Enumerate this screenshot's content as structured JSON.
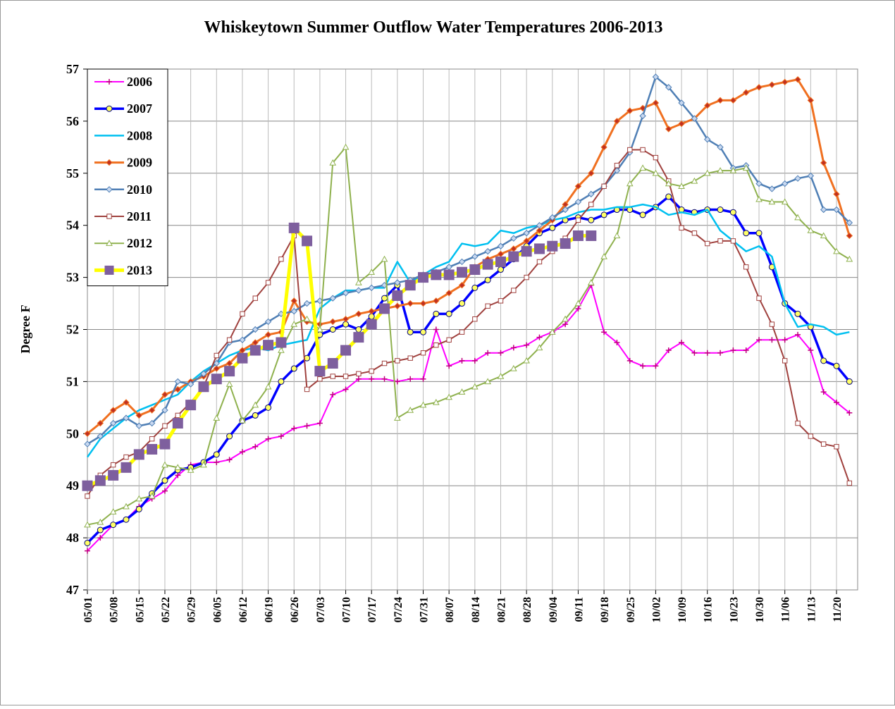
{
  "chart_data": {
    "type": "line",
    "title": "Whiskeytown  Summer Outflow Water Temperatures  2006-2013",
    "y_label": "Degree F",
    "categories": [
      "05/01",
      null,
      "05/08",
      null,
      "05/15",
      null,
      "05/22",
      null,
      "05/29",
      null,
      "06/05",
      null,
      "06/12",
      null,
      "06/19",
      null,
      "06/26",
      null,
      "07/03",
      null,
      "07/10",
      null,
      "07/17",
      null,
      "07/24",
      null,
      "07/31",
      null,
      "08/07",
      null,
      "08/14",
      null,
      "08/21",
      null,
      "08/28",
      null,
      "09/04",
      null,
      "09/11",
      null,
      "09/18",
      null,
      "09/25",
      null,
      "10/02",
      null,
      "10/09",
      null,
      "10/16",
      null,
      "10/23",
      null,
      "10/30",
      null,
      "11/06",
      null,
      "11/13",
      null,
      "11/20",
      null
    ],
    "ylim": [
      47,
      57
    ],
    "yticks": [
      47,
      48,
      49,
      50,
      51,
      52,
      53,
      54,
      55,
      56,
      57
    ],
    "grid": true,
    "legend": "upper-left",
    "series": [
      {
        "name": "2006",
        "color": "#ff00ff",
        "marker": "plus",
        "marker_color": "#c0007f",
        "values": [
          47.75,
          48.0,
          48.25,
          48.35,
          48.6,
          48.75,
          48.9,
          49.2,
          49.4,
          49.45,
          49.45,
          49.5,
          49.65,
          49.75,
          49.9,
          49.95,
          50.1,
          50.15,
          50.2,
          50.75,
          50.85,
          51.05,
          51.05,
          51.05,
          51.0,
          51.05,
          51.05,
          52.0,
          51.3,
          51.4,
          51.4,
          51.55,
          51.55,
          51.65,
          51.7,
          51.85,
          51.95,
          52.1,
          52.4,
          52.85,
          51.95,
          51.75,
          51.4,
          51.3,
          51.3,
          51.6,
          51.75,
          51.55,
          51.55,
          51.55,
          51.6,
          51.6,
          51.8,
          51.8,
          51.8,
          51.9,
          51.6,
          50.8,
          50.6,
          50.4
        ]
      },
      {
        "name": "2007",
        "color": "#0000ff",
        "marker": "circle",
        "marker_color": "#ffff66",
        "values": [
          47.9,
          48.15,
          48.25,
          48.35,
          48.55,
          48.85,
          49.1,
          49.3,
          49.35,
          49.45,
          49.6,
          49.95,
          50.25,
          50.35,
          50.5,
          51.0,
          51.25,
          51.45,
          51.9,
          52.0,
          52.1,
          52.0,
          52.25,
          52.6,
          52.85,
          51.95,
          51.95,
          52.3,
          52.3,
          52.5,
          52.8,
          52.95,
          53.15,
          53.35,
          53.6,
          53.85,
          53.95,
          54.1,
          54.15,
          54.1,
          54.2,
          54.3,
          54.3,
          54.2,
          54.35,
          54.55,
          54.3,
          54.25,
          54.3,
          54.3,
          54.25,
          53.85,
          53.85,
          53.2,
          52.5,
          52.3,
          52.05,
          51.4,
          51.3,
          51.0
        ]
      },
      {
        "name": "2008",
        "color": "#00c0f0",
        "marker": "none",
        "marker_color": "#00c0f0",
        "values": [
          49.55,
          49.9,
          50.1,
          50.3,
          50.45,
          50.55,
          50.65,
          50.75,
          51.0,
          51.2,
          51.35,
          51.5,
          51.6,
          51.65,
          51.6,
          51.7,
          51.75,
          51.8,
          52.4,
          52.6,
          52.75,
          52.75,
          52.8,
          52.8,
          53.3,
          52.9,
          53.05,
          53.2,
          53.3,
          53.65,
          53.6,
          53.65,
          53.9,
          53.85,
          53.95,
          54.0,
          54.1,
          54.15,
          54.25,
          54.3,
          54.3,
          54.35,
          54.35,
          54.4,
          54.35,
          54.2,
          54.25,
          54.2,
          54.3,
          53.9,
          53.7,
          53.5,
          53.6,
          53.4,
          52.5,
          52.05,
          52.1,
          52.05,
          51.9,
          51.95
        ]
      },
      {
        "name": "2009",
        "color": "#f07020",
        "marker": "diamond",
        "marker_color": "#c03020",
        "values": [
          50.0,
          50.2,
          50.45,
          50.6,
          50.35,
          50.45,
          50.75,
          50.85,
          51.0,
          51.1,
          51.25,
          51.35,
          51.6,
          51.75,
          51.9,
          51.95,
          52.55,
          52.15,
          52.1,
          52.15,
          52.2,
          52.3,
          52.35,
          52.4,
          52.45,
          52.5,
          52.5,
          52.55,
          52.7,
          52.85,
          53.2,
          53.35,
          53.45,
          53.55,
          53.7,
          53.9,
          54.1,
          54.4,
          54.75,
          55.0,
          55.5,
          56.0,
          56.2,
          56.25,
          56.35,
          55.85,
          55.95,
          56.05,
          56.3,
          56.4,
          56.4,
          56.55,
          56.65,
          56.7,
          56.75,
          56.8,
          56.4,
          55.2,
          54.6,
          53.8
        ]
      },
      {
        "name": "2010",
        "color": "#4f7fb5",
        "marker": "diamond",
        "marker_color": "#c8d8f0",
        "values": [
          49.8,
          49.95,
          50.2,
          50.3,
          50.15,
          50.2,
          50.45,
          51.0,
          50.95,
          51.15,
          51.35,
          51.75,
          51.8,
          52.0,
          52.15,
          52.3,
          52.35,
          52.5,
          52.55,
          52.6,
          52.7,
          52.75,
          52.8,
          52.85,
          52.9,
          52.95,
          53.05,
          53.1,
          53.2,
          53.3,
          53.4,
          53.5,
          53.6,
          53.75,
          53.85,
          54.0,
          54.15,
          54.3,
          54.45,
          54.6,
          54.75,
          55.05,
          55.4,
          56.1,
          56.85,
          56.65,
          56.35,
          56.05,
          55.65,
          55.5,
          55.1,
          55.15,
          54.8,
          54.7,
          54.8,
          54.9,
          54.95,
          54.3,
          54.3,
          54.05
        ]
      },
      {
        "name": "2011",
        "color": "#a0413e",
        "marker": "square-open",
        "marker_color": "#ffffff",
        "values": [
          48.8,
          49.2,
          49.4,
          49.55,
          49.65,
          49.9,
          50.15,
          50.35,
          50.6,
          50.9,
          51.5,
          51.8,
          52.3,
          52.6,
          52.9,
          53.35,
          53.8,
          50.85,
          51.05,
          51.1,
          51.1,
          51.15,
          51.2,
          51.35,
          51.4,
          51.45,
          51.55,
          51.7,
          51.8,
          51.95,
          52.2,
          52.45,
          52.55,
          52.75,
          53.0,
          53.3,
          53.5,
          53.75,
          54.1,
          54.4,
          54.75,
          55.15,
          55.45,
          55.45,
          55.3,
          54.85,
          53.95,
          53.85,
          53.65,
          53.7,
          53.7,
          53.2,
          52.6,
          52.1,
          51.4,
          50.2,
          49.95,
          49.8,
          49.75,
          49.05
        ]
      },
      {
        "name": "2012",
        "color": "#8fb14e",
        "marker": "triangle-open",
        "marker_color": "#ffffff",
        "values": [
          48.25,
          48.3,
          48.5,
          48.6,
          48.75,
          48.8,
          49.4,
          49.35,
          49.3,
          49.4,
          50.3,
          50.95,
          50.25,
          50.55,
          50.9,
          51.6,
          52.1,
          52.2,
          52.0,
          55.2,
          55.5,
          52.9,
          53.1,
          53.35,
          50.3,
          50.45,
          50.55,
          50.6,
          50.7,
          50.8,
          50.9,
          51.0,
          51.1,
          51.25,
          51.4,
          51.65,
          51.95,
          52.2,
          52.5,
          52.9,
          53.4,
          53.8,
          54.8,
          55.1,
          55.0,
          54.8,
          54.75,
          54.85,
          55.0,
          55.05,
          55.05,
          55.1,
          54.5,
          54.45,
          54.45,
          54.15,
          53.9,
          53.8,
          53.5,
          53.35
        ]
      },
      {
        "name": "2013",
        "color": "#ffff00",
        "marker": "square",
        "marker_color": "#7e5f9e",
        "values": [
          49.0,
          49.1,
          49.2,
          49.35,
          49.6,
          49.7,
          49.8,
          50.2,
          50.55,
          50.9,
          51.05,
          51.2,
          51.45,
          51.6,
          51.7,
          51.75,
          53.95,
          53.7,
          51.2,
          51.35,
          51.6,
          51.85,
          52.1,
          52.4,
          52.65,
          52.85,
          53.0,
          53.05,
          53.05,
          53.1,
          53.15,
          53.25,
          53.3,
          53.4,
          53.5,
          53.55,
          53.6,
          53.65,
          53.8,
          53.8,
          null,
          null,
          null,
          null,
          null,
          null,
          null,
          null,
          null,
          null,
          null,
          null,
          null,
          null,
          null,
          null,
          null,
          null,
          null,
          null
        ]
      }
    ]
  }
}
